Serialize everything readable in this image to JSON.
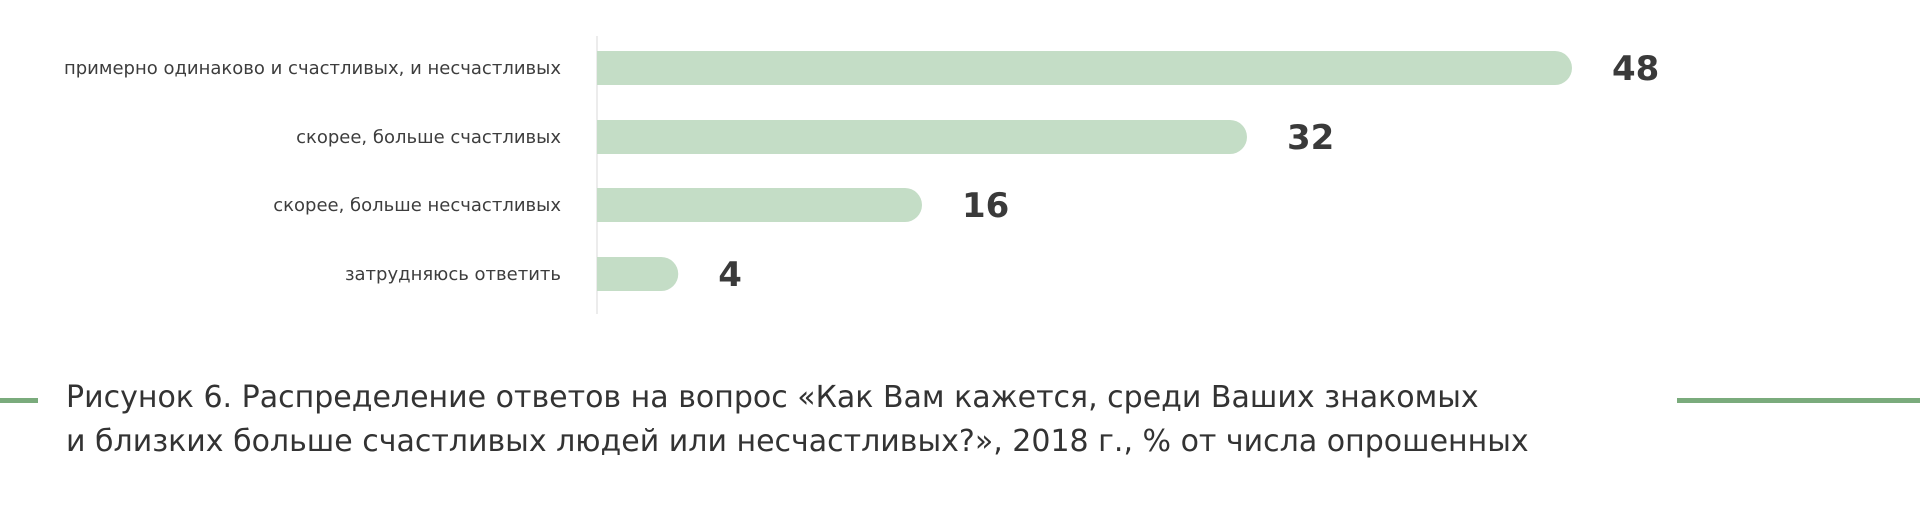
{
  "chart_data": {
    "type": "bar",
    "orientation": "horizontal",
    "categories": [
      "примерно одинаково и счастливых, и несчастливых",
      "скорее, больше счастливых",
      "скорее, больше несчастливых",
      "затрудняюсь ответить"
    ],
    "values": [
      48,
      32,
      16,
      4
    ],
    "value_labels": [
      "48",
      "32",
      "16",
      "4"
    ],
    "bar_color": "#c4ddc6",
    "axis_color": "#e6e6e6",
    "grid": false,
    "legend": "none"
  },
  "caption": {
    "line1": "Рисунок 6. Распределение ответов на вопрос «Как Вам кажется, среди Ваших знакомых",
    "line2": "и близких больше счастливых людей или несчастливых?», 2018 г., % от числа опрошенных"
  },
  "colors": {
    "accent_line": "#7aab7c",
    "text": "#333333"
  }
}
